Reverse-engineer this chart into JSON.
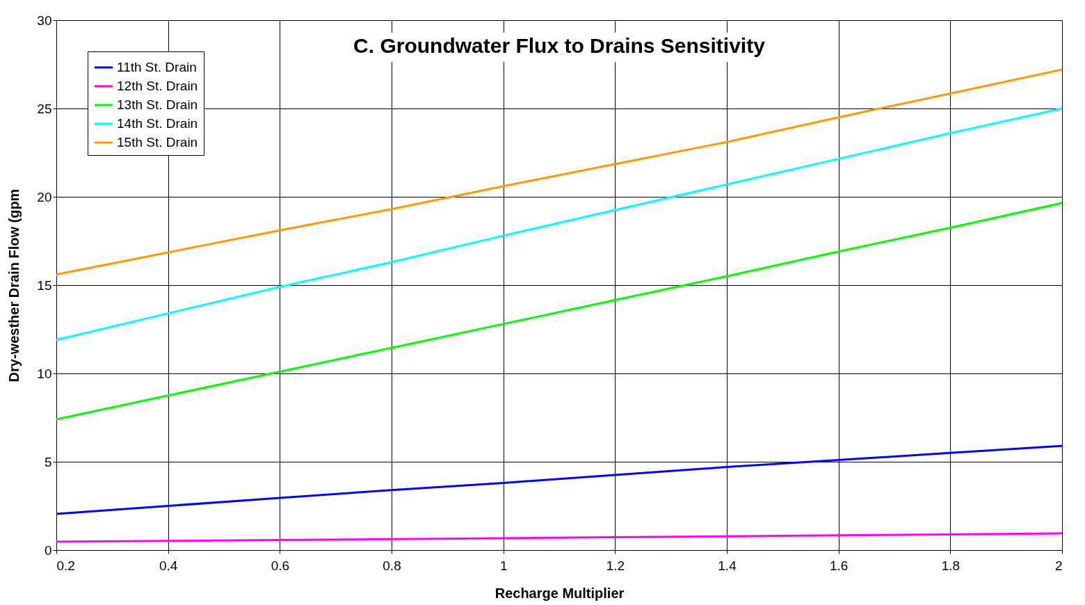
{
  "chart_data": {
    "type": "line",
    "title": "C. Groundwater Flux to Drains Sensitivity",
    "xlabel": "Recharge Multiplier",
    "ylabel": "Dry-westher Drain Flow (gpm",
    "x": [
      0.2,
      0.4,
      0.6,
      0.8,
      1.0,
      1.2,
      1.4,
      1.6,
      1.8,
      2.0
    ],
    "series": [
      {
        "name": "11th St. Drain",
        "color": "#0000ff",
        "values": [
          2.05,
          2.5,
          2.95,
          3.4,
          3.8,
          4.25,
          4.7,
          5.1,
          5.5,
          5.9
        ]
      },
      {
        "name": "12th St. Drain",
        "color": "#ff00ff",
        "values": [
          0.47,
          0.52,
          0.57,
          0.62,
          0.67,
          0.73,
          0.78,
          0.84,
          0.89,
          0.95
        ]
      },
      {
        "name": "13th St. Drain",
        "color": "#00ff00",
        "values": [
          7.4,
          8.75,
          10.1,
          11.45,
          12.8,
          14.15,
          15.5,
          16.9,
          18.25,
          19.65
        ]
      },
      {
        "name": "14th St. Drain",
        "color": "#00ffff",
        "values": [
          11.9,
          13.4,
          14.9,
          16.3,
          17.8,
          19.25,
          20.7,
          22.15,
          23.6,
          25.0
        ]
      },
      {
        "name": "15th St. Drain",
        "color": "#ff9900",
        "values": [
          15.6,
          16.85,
          18.1,
          19.3,
          20.6,
          21.85,
          23.1,
          24.5,
          25.85,
          27.2
        ]
      }
    ],
    "xlim": [
      0.2,
      2
    ],
    "xticks": [
      0.2,
      0.4,
      0.6,
      0.8,
      1,
      1.2,
      1.4,
      1.6,
      1.8,
      2
    ],
    "ylim": [
      0,
      30
    ],
    "yticks": [
      0,
      5,
      10,
      15,
      20,
      25,
      30
    ],
    "grid": true,
    "legend": "top left",
    "marker": "none",
    "line_style": "solid"
  }
}
